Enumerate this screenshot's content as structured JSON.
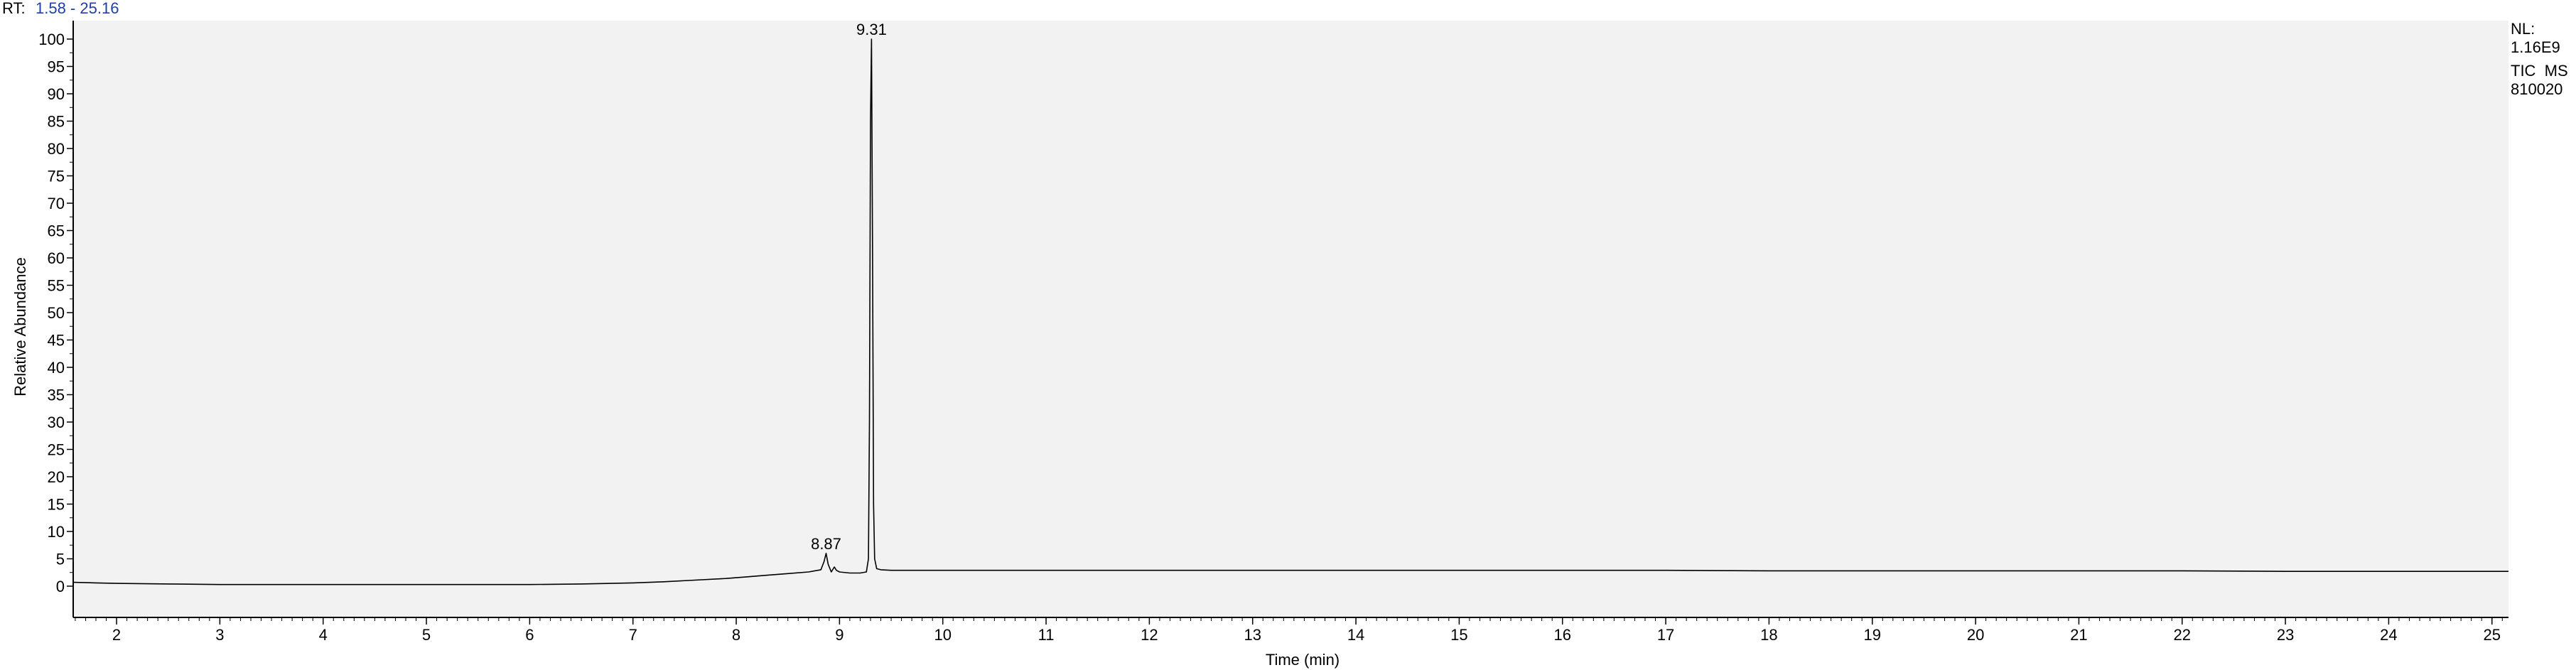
{
  "header": {
    "rt_label": "RT:",
    "rt_range": "1.58 - 25.16"
  },
  "info": {
    "lines": [
      "NL:",
      "1.16E9",
      "TIC  MS",
      "810020"
    ]
  },
  "colors": {
    "plot_background": "#f2f2f2",
    "trace": "#000000",
    "rt_value": "#1f3fa8"
  },
  "chart_data": {
    "type": "line",
    "xlabel": "Time (min)",
    "ylabel": "Relative Abundance",
    "xlim": [
      1.58,
      25.16
    ],
    "ylim": [
      0,
      100
    ],
    "x_ticks": [
      2,
      3,
      4,
      5,
      6,
      7,
      8,
      9,
      10,
      11,
      12,
      13,
      14,
      15,
      16,
      17,
      18,
      19,
      20,
      21,
      22,
      23,
      24,
      25
    ],
    "y_ticks": [
      0,
      5,
      10,
      15,
      20,
      25,
      30,
      35,
      40,
      45,
      50,
      55,
      60,
      65,
      70,
      75,
      80,
      85,
      90,
      95,
      100
    ],
    "grid": false,
    "series": [
      {
        "x": [
          1.58,
          1.8,
          2.0,
          2.5,
          3.0,
          3.5,
          4.0,
          4.5,
          5.0,
          5.5,
          6.0,
          6.5,
          7.0,
          7.3,
          7.6,
          7.9,
          8.1,
          8.3,
          8.5,
          8.7,
          8.82,
          8.85,
          8.87,
          8.89,
          8.92,
          8.95,
          8.97,
          9.0,
          9.1,
          9.2,
          9.26,
          9.28,
          9.29,
          9.3,
          9.31,
          9.32,
          9.33,
          9.34,
          9.36,
          9.4,
          9.5,
          10.0,
          11.0,
          12.0,
          13.0,
          14.0,
          15.0,
          16.0,
          17.0,
          18.0,
          19.0,
          20.0,
          21.0,
          22.0,
          23.0,
          24.0,
          25.16
        ],
        "y": [
          0.7,
          0.6,
          0.5,
          0.4,
          0.3,
          0.3,
          0.3,
          0.3,
          0.3,
          0.3,
          0.3,
          0.4,
          0.6,
          0.8,
          1.1,
          1.4,
          1.7,
          2.0,
          2.3,
          2.6,
          3.0,
          4.5,
          6.0,
          4.0,
          2.6,
          3.5,
          2.9,
          2.6,
          2.4,
          2.4,
          2.6,
          5.0,
          30.0,
          85.0,
          100.0,
          60.0,
          15.0,
          5.0,
          3.2,
          3.0,
          2.9,
          2.9,
          2.9,
          2.9,
          2.9,
          2.9,
          2.9,
          2.9,
          2.9,
          2.8,
          2.8,
          2.8,
          2.8,
          2.8,
          2.7,
          2.7,
          2.7
        ]
      }
    ],
    "annotations": [
      {
        "x": 8.87,
        "y": 6.0,
        "text": "8.87"
      },
      {
        "x": 9.31,
        "y": 100.0,
        "text": "9.31"
      }
    ]
  }
}
